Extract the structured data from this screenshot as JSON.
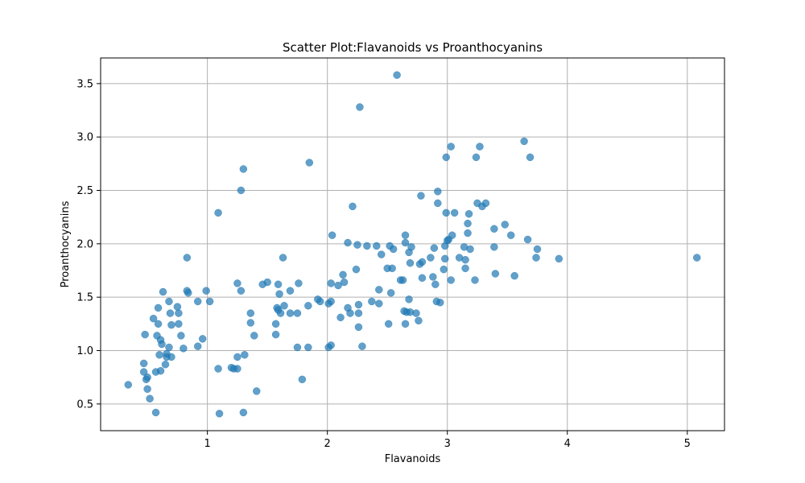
{
  "chart_data": {
    "type": "scatter",
    "title": "Scatter Plot:Flavanoids vs Proanthocyanins",
    "xlabel": "Flavanoids",
    "ylabel": "Proanthocyanins",
    "xlim": [
      0.11,
      5.31
    ],
    "ylim": [
      0.25,
      3.74
    ],
    "xticks": [
      1,
      2,
      3,
      4,
      5
    ],
    "yticks": [
      0.5,
      1.0,
      1.5,
      2.0,
      2.5,
      3.0,
      3.5
    ],
    "grid": true,
    "point_color": "#1f77b4",
    "point_alpha": 0.7,
    "points": [
      [
        0.34,
        0.68
      ],
      [
        0.47,
        0.8
      ],
      [
        0.47,
        0.88
      ],
      [
        0.48,
        1.15
      ],
      [
        0.49,
        0.73
      ],
      [
        0.5,
        0.64
      ],
      [
        0.5,
        0.75
      ],
      [
        0.52,
        0.55
      ],
      [
        0.55,
        1.3
      ],
      [
        0.57,
        0.42
      ],
      [
        0.57,
        0.8
      ],
      [
        0.58,
        1.14
      ],
      [
        0.59,
        1.25
      ],
      [
        0.59,
        1.4
      ],
      [
        0.6,
        0.96
      ],
      [
        0.61,
        1.1
      ],
      [
        0.61,
        0.81
      ],
      [
        0.62,
        1.06
      ],
      [
        0.63,
        1.55
      ],
      [
        0.65,
        0.87
      ],
      [
        0.66,
        0.94
      ],
      [
        0.66,
        0.97
      ],
      [
        0.68,
        1.03
      ],
      [
        0.68,
        1.46
      ],
      [
        0.69,
        1.35
      ],
      [
        0.7,
        1.24
      ],
      [
        0.7,
        0.94
      ],
      [
        0.75,
        1.41
      ],
      [
        0.76,
        1.35
      ],
      [
        0.76,
        1.25
      ],
      [
        0.78,
        1.14
      ],
      [
        0.8,
        1.02
      ],
      [
        0.83,
        1.87
      ],
      [
        0.83,
        1.56
      ],
      [
        0.84,
        1.54
      ],
      [
        0.92,
        1.04
      ],
      [
        0.92,
        1.46
      ],
      [
        0.96,
        1.11
      ],
      [
        0.99,
        1.56
      ],
      [
        1.02,
        1.46
      ],
      [
        1.09,
        2.29
      ],
      [
        1.09,
        0.83
      ],
      [
        1.1,
        0.41
      ],
      [
        1.2,
        0.84
      ],
      [
        1.22,
        0.83
      ],
      [
        1.25,
        1.63
      ],
      [
        1.25,
        0.83
      ],
      [
        1.25,
        0.94
      ],
      [
        1.28,
        2.5
      ],
      [
        1.28,
        1.56
      ],
      [
        1.3,
        2.7
      ],
      [
        1.3,
        0.42
      ],
      [
        1.31,
        0.96
      ],
      [
        1.36,
        1.35
      ],
      [
        1.36,
        1.26
      ],
      [
        1.39,
        1.14
      ],
      [
        1.41,
        0.62
      ],
      [
        1.46,
        1.62
      ],
      [
        1.5,
        1.64
      ],
      [
        1.57,
        1.15
      ],
      [
        1.57,
        1.25
      ],
      [
        1.58,
        1.4
      ],
      [
        1.59,
        1.62
      ],
      [
        1.59,
        1.38
      ],
      [
        1.6,
        1.53
      ],
      [
        1.61,
        1.35
      ],
      [
        1.63,
        1.87
      ],
      [
        1.64,
        1.42
      ],
      [
        1.69,
        1.56
      ],
      [
        1.69,
        1.35
      ],
      [
        1.75,
        1.03
      ],
      [
        1.75,
        1.35
      ],
      [
        1.76,
        1.63
      ],
      [
        1.79,
        0.73
      ],
      [
        1.84,
        1.42
      ],
      [
        1.84,
        1.03
      ],
      [
        1.85,
        2.76
      ],
      [
        1.92,
        1.48
      ],
      [
        1.94,
        1.46
      ],
      [
        2.01,
        1.03
      ],
      [
        2.01,
        1.44
      ],
      [
        2.03,
        1.05
      ],
      [
        2.03,
        1.63
      ],
      [
        2.03,
        1.46
      ],
      [
        2.04,
        2.08
      ],
      [
        2.09,
        1.61
      ],
      [
        2.11,
        1.31
      ],
      [
        2.13,
        1.71
      ],
      [
        2.14,
        1.64
      ],
      [
        2.17,
        2.01
      ],
      [
        2.17,
        1.4
      ],
      [
        2.19,
        1.35
      ],
      [
        2.21,
        2.35
      ],
      [
        2.24,
        1.76
      ],
      [
        2.25,
        1.99
      ],
      [
        2.26,
        1.43
      ],
      [
        2.26,
        1.35
      ],
      [
        2.26,
        1.22
      ],
      [
        2.27,
        3.28
      ],
      [
        2.29,
        1.04
      ],
      [
        2.33,
        1.98
      ],
      [
        2.37,
        1.46
      ],
      [
        2.41,
        1.98
      ],
      [
        2.43,
        1.44
      ],
      [
        2.43,
        1.57
      ],
      [
        2.45,
        1.9
      ],
      [
        2.5,
        1.77
      ],
      [
        2.51,
        1.25
      ],
      [
        2.52,
        1.98
      ],
      [
        2.53,
        1.54
      ],
      [
        2.54,
        1.77
      ],
      [
        2.55,
        1.95
      ],
      [
        2.58,
        3.58
      ],
      [
        2.61,
        1.66
      ],
      [
        2.63,
        1.66
      ],
      [
        2.64,
        1.37
      ],
      [
        2.65,
        2.08
      ],
      [
        2.65,
        2.01
      ],
      [
        2.65,
        1.25
      ],
      [
        2.66,
        1.36
      ],
      [
        2.68,
        1.92
      ],
      [
        2.68,
        1.48
      ],
      [
        2.69,
        1.82
      ],
      [
        2.69,
        1.36
      ],
      [
        2.7,
        1.97
      ],
      [
        2.74,
        1.35
      ],
      [
        2.76,
        1.28
      ],
      [
        2.77,
        1.81
      ],
      [
        2.78,
        2.45
      ],
      [
        2.79,
        1.68
      ],
      [
        2.79,
        1.83
      ],
      [
        2.86,
        1.87
      ],
      [
        2.88,
        1.69
      ],
      [
        2.89,
        1.96
      ],
      [
        2.9,
        1.62
      ],
      [
        2.91,
        1.46
      ],
      [
        2.92,
        2.49
      ],
      [
        2.92,
        2.38
      ],
      [
        2.94,
        1.45
      ],
      [
        2.97,
        1.76
      ],
      [
        2.98,
        1.98
      ],
      [
        2.98,
        1.86
      ],
      [
        2.99,
        2.81
      ],
      [
        2.99,
        2.29
      ],
      [
        3.0,
        2.03
      ],
      [
        3.01,
        2.04
      ],
      [
        3.03,
        2.91
      ],
      [
        3.03,
        1.66
      ],
      [
        3.04,
        2.08
      ],
      [
        3.06,
        2.29
      ],
      [
        3.1,
        1.87
      ],
      [
        3.14,
        1.97
      ],
      [
        3.15,
        1.85
      ],
      [
        3.15,
        1.77
      ],
      [
        3.17,
        2.19
      ],
      [
        3.17,
        2.1
      ],
      [
        3.18,
        2.28
      ],
      [
        3.19,
        1.95
      ],
      [
        3.23,
        1.66
      ],
      [
        3.24,
        2.81
      ],
      [
        3.25,
        2.38
      ],
      [
        3.27,
        2.91
      ],
      [
        3.29,
        2.35
      ],
      [
        3.32,
        2.38
      ],
      [
        3.39,
        1.97
      ],
      [
        3.39,
        2.14
      ],
      [
        3.4,
        1.72
      ],
      [
        3.48,
        2.18
      ],
      [
        3.53,
        2.08
      ],
      [
        3.56,
        1.7
      ],
      [
        3.64,
        2.96
      ],
      [
        3.67,
        2.04
      ],
      [
        3.69,
        2.81
      ],
      [
        3.74,
        1.87
      ],
      [
        3.75,
        1.95
      ],
      [
        3.93,
        1.86
      ],
      [
        5.08,
        1.87
      ]
    ]
  }
}
